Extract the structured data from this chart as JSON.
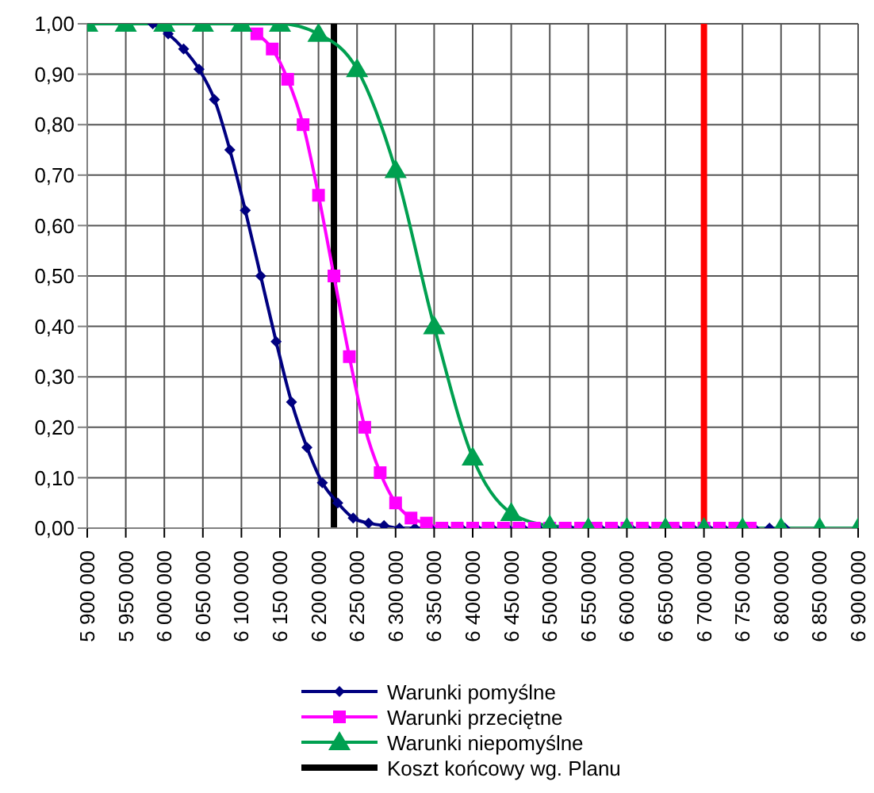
{
  "chart_data": {
    "type": "line",
    "xlim": [
      5900000,
      6900000
    ],
    "xticks": [
      {
        "value": 5900000,
        "label": "5 900 000"
      },
      {
        "value": 5950000,
        "label": "5 950 000"
      },
      {
        "value": 6000000,
        "label": "6 000 000"
      },
      {
        "value": 6050000,
        "label": "6 050 000"
      },
      {
        "value": 6100000,
        "label": "6 100 000"
      },
      {
        "value": 6150000,
        "label": "6 150 000"
      },
      {
        "value": 6200000,
        "label": "6 200 000"
      },
      {
        "value": 6250000,
        "label": "6 250 000"
      },
      {
        "value": 6300000,
        "label": "6 300 000"
      },
      {
        "value": 6350000,
        "label": "6 350 000"
      },
      {
        "value": 6400000,
        "label": "6 400 000"
      },
      {
        "value": 6450000,
        "label": "6 450 000"
      },
      {
        "value": 6500000,
        "label": "6 500 000"
      },
      {
        "value": 6550000,
        "label": "6 550 000"
      },
      {
        "value": 6600000,
        "label": "6 600 000"
      },
      {
        "value": 6650000,
        "label": "6 650 000"
      },
      {
        "value": 6700000,
        "label": "6 700 000"
      },
      {
        "value": 6750000,
        "label": "6 750 000"
      },
      {
        "value": 6800000,
        "label": "6 800 000"
      },
      {
        "value": 6850000,
        "label": "6 850 000"
      },
      {
        "value": 6900000,
        "label": "6 900 000"
      }
    ],
    "ylim": [
      0,
      1
    ],
    "yticks": [
      {
        "value": 0,
        "label": "0,00"
      },
      {
        "value": 0.1,
        "label": "0,10"
      },
      {
        "value": 0.2,
        "label": "0,20"
      },
      {
        "value": 0.3,
        "label": "0,30"
      },
      {
        "value": 0.4,
        "label": "0,40"
      },
      {
        "value": 0.5,
        "label": "0,50"
      },
      {
        "value": 0.6,
        "label": "0,60"
      },
      {
        "value": 0.7,
        "label": "0,70"
      },
      {
        "value": 0.8,
        "label": "0,80"
      },
      {
        "value": 0.9,
        "label": "0,90"
      },
      {
        "value": 1,
        "label": "1,00"
      }
    ],
    "grid": true,
    "legend": "bottom",
    "series": [
      {
        "name": "Warunki pomyślne",
        "color": "#000080",
        "marker": "diamond",
        "x": [
          5985000,
          6005000,
          6025000,
          6045000,
          6065000,
          6085000,
          6105000,
          6125000,
          6145000,
          6165000,
          6185000,
          6205000,
          6225000,
          6245000,
          6265000,
          6285000,
          6305000,
          6325000,
          6345000,
          6365000,
          6385000,
          6405000,
          6425000,
          6445000,
          6465000,
          6485000,
          6505000,
          6525000,
          6545000,
          6565000,
          6585000,
          6605000,
          6625000,
          6645000,
          6665000,
          6685000,
          6705000,
          6725000,
          6745000,
          6765000,
          6785000,
          6805000
        ],
        "values": [
          1.0,
          0.98,
          0.95,
          0.91,
          0.85,
          0.75,
          0.63,
          0.5,
          0.37,
          0.25,
          0.16,
          0.09,
          0.05,
          0.02,
          0.01,
          0.005,
          0,
          0,
          0,
          0,
          0,
          0,
          0,
          0,
          0,
          0,
          0,
          0,
          0,
          0,
          0,
          0,
          0,
          0,
          0,
          0,
          0,
          0,
          0,
          0,
          0,
          0
        ]
      },
      {
        "name": "Warunki przeciętne",
        "color": "#ff00ff",
        "marker": "square",
        "x": [
          6120000,
          6140000,
          6160000,
          6180000,
          6200000,
          6220000,
          6240000,
          6260000,
          6280000,
          6300000,
          6320000,
          6340000,
          6360000,
          6380000,
          6400000,
          6420000,
          6440000,
          6460000,
          6480000,
          6500000,
          6520000,
          6540000,
          6560000,
          6580000,
          6600000,
          6620000,
          6640000,
          6660000,
          6680000,
          6700000,
          6720000,
          6740000,
          6760000
        ],
        "values": [
          0.98,
          0.95,
          0.89,
          0.8,
          0.66,
          0.5,
          0.34,
          0.2,
          0.11,
          0.05,
          0.02,
          0.01,
          0,
          0,
          0,
          0,
          0,
          0,
          0,
          0,
          0,
          0,
          0,
          0,
          0,
          0,
          0,
          0,
          0,
          0,
          0,
          0,
          0
        ]
      },
      {
        "name": "Warunki niepomyślne",
        "color": "#00a050",
        "marker": "triangle",
        "x": [
          5900000,
          5950000,
          6000000,
          6050000,
          6100000,
          6150000,
          6200000,
          6250000,
          6300000,
          6350000,
          6400000,
          6450000,
          6500000,
          6550000,
          6600000,
          6650000,
          6700000,
          6750000,
          6800000,
          6850000,
          6900000
        ],
        "values": [
          1,
          1,
          1,
          1,
          1,
          1,
          0.98,
          0.91,
          0.71,
          0.4,
          0.14,
          0.03,
          0.005,
          0,
          0,
          0,
          0,
          0,
          0,
          0,
          0
        ]
      }
    ],
    "ref_lines": [
      {
        "axis": "x",
        "value": 6220000,
        "label": "Koszt końcowy wg. Planu",
        "color": "#000000"
      },
      {
        "axis": "x",
        "value": 6700000,
        "color": "#ff0000"
      }
    ]
  }
}
